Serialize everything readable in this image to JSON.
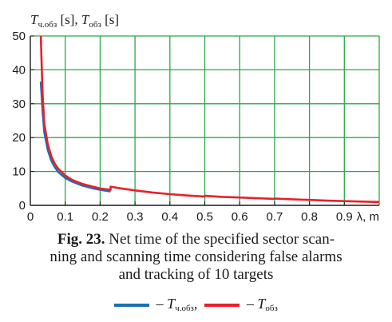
{
  "chart_data": {
    "type": "line",
    "ylabel_parts": [
      {
        "text": "T",
        "style": "italic"
      },
      {
        "text": "ч.обз",
        "style": "sub"
      },
      {
        "text": " [s], ",
        "style": "normal"
      },
      {
        "text": "T",
        "style": "italic"
      },
      {
        "text": "обз",
        "style": "sub"
      },
      {
        "text": " [s]",
        "style": "normal"
      }
    ],
    "xlabel": "λ, m",
    "xlim": [
      0,
      1.0
    ],
    "ylim": [
      0,
      50
    ],
    "x_ticks": [
      "0",
      "0.1",
      "0.2",
      "0.3",
      "0.4",
      "0.5",
      "0.6",
      "0.7",
      "0.8",
      "0.9"
    ],
    "x_tick_values": [
      0,
      0.1,
      0.2,
      0.3,
      0.4,
      0.5,
      0.6,
      0.7,
      0.8,
      0.9
    ],
    "y_ticks": [
      "0",
      "10",
      "20",
      "30",
      "40",
      "50"
    ],
    "y_tick_values": [
      0,
      10,
      20,
      30,
      40,
      50
    ],
    "grid": true,
    "grid_color": "#2aa84a",
    "series": [
      {
        "color": "#1f6fb0",
        "x": [
          0.03,
          0.035,
          0.04,
          0.05,
          0.06,
          0.07,
          0.08,
          0.1,
          0.12,
          0.15,
          0.18,
          0.2,
          0.23
        ],
        "y": [
          36.5,
          28.0,
          21.5,
          16.3,
          13.2,
          11.3,
          9.8,
          8.1,
          7.0,
          5.8,
          5.0,
          4.6,
          4.1
        ]
      },
      {
        "color": "#e8202a",
        "x": [
          0.03,
          0.035,
          0.04,
          0.05,
          0.06,
          0.07,
          0.08,
          0.1,
          0.12,
          0.15,
          0.18,
          0.2,
          0.23,
          0.23,
          0.26,
          0.3,
          0.35,
          0.4,
          0.45,
          0.5,
          0.5,
          0.55,
          0.6,
          0.65,
          0.7,
          0.7,
          0.75,
          0.8,
          0.85,
          0.9,
          0.95,
          1.0
        ],
        "y": [
          50.0,
          33.0,
          24.0,
          18.0,
          14.5,
          12.3,
          10.8,
          8.8,
          7.5,
          6.3,
          5.5,
          5.0,
          4.6,
          5.5,
          5.0,
          4.4,
          3.8,
          3.3,
          2.9,
          2.6,
          2.8,
          2.5,
          2.3,
          2.1,
          1.9,
          2.0,
          1.8,
          1.6,
          1.4,
          1.25,
          1.1,
          1.0
        ]
      }
    ]
  },
  "caption": {
    "fig_label": "Fig. 23.",
    "line1_rest": " Net time of the specified sector scan-",
    "line2": "ning and scanning time considering false alarms",
    "line3": "and tracking of 10 targets"
  },
  "legend": {
    "entries": [
      {
        "color": "#1f6fb0",
        "prefix": " – ",
        "symbol": "T",
        "sub": "ч.обз",
        "suffix": ","
      },
      {
        "color": "#e8202a",
        "prefix": " – ",
        "symbol": "T",
        "sub": "обз",
        "suffix": ""
      }
    ]
  }
}
